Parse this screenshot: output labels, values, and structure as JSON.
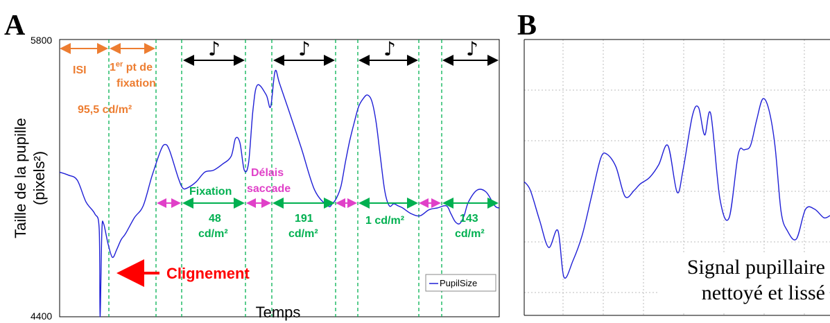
{
  "chart_data": [
    {
      "panel": "A",
      "type": "line",
      "xlabel": "Temps",
      "ylabel": "Taille de la pupille (pixels²)",
      "ylim": [
        4400,
        5800
      ],
      "yticks": [
        "5800",
        "4400"
      ],
      "legend": "PupilSize",
      "legend_position": "bottom-right",
      "series": [
        {
          "name": "PupilSize",
          "color": "#1f1fd6",
          "x": [
            0,
            2,
            4,
            6,
            8,
            9,
            9.2,
            9.6,
            10,
            11,
            12,
            13,
            14,
            15,
            17,
            19,
            21,
            23,
            24,
            25,
            27,
            28,
            29,
            31,
            33,
            35,
            37,
            39,
            40,
            41,
            42,
            43,
            44,
            45,
            47,
            48,
            49,
            50,
            52,
            55,
            58,
            61,
            62,
            63,
            64,
            65,
            66,
            67,
            68,
            69,
            70,
            71,
            72,
            73,
            74,
            75,
            76,
            77,
            78,
            80,
            82,
            84,
            86,
            88,
            89,
            90,
            91,
            92,
            93,
            95,
            97,
            99,
            100
          ],
          "values": [
            5130,
            5115,
            5090,
            4980,
            4920,
            4840,
            4400,
            4830,
            4870,
            4770,
            4700,
            4740,
            4790,
            4820,
            4900,
            4960,
            5110,
            5240,
            5270,
            5240,
            5100,
            5050,
            5050,
            5080,
            5130,
            5140,
            5170,
            5210,
            5300,
            5280,
            5140,
            5180,
            5450,
            5570,
            5520,
            5460,
            5640,
            5580,
            5450,
            5250,
            5040,
            4960,
            4970,
            5000,
            5060,
            5180,
            5290,
            5380,
            5460,
            5500,
            5520,
            5490,
            5380,
            5200,
            5030,
            4960,
            4970,
            4960,
            4950,
            4920,
            4910,
            4940,
            4950,
            4960,
            4920,
            4880,
            4870,
            4910,
            4980,
            5040,
            5030,
            4960,
            4950
          ]
        }
      ],
      "annotations": {
        "isi": "ISI",
        "fixation_first_prefix": "1",
        "fixation_first_sup": "er",
        "fixation_first_rest": " pt de",
        "fixation_first_line2": "fixation",
        "lum_first": "95,5 cd/m²",
        "fixation": "Fixation",
        "delais_line1": "Délais",
        "delais_line2": "saccade",
        "lum_48_line1": "48",
        "lum_48_line2": "cd/m²",
        "lum_191_line1": "191",
        "lum_191_line2": "cd/m²",
        "lum_1": "1 cd/m²",
        "lum_143_line1": "143",
        "lum_143_line2": "cd/m²",
        "blink": "Clignement",
        "note": "♪"
      },
      "colors": {
        "isi": "#ed7d31",
        "fixation": "#00b050",
        "delay": "#e040c8",
        "blink": "#ff0000",
        "markers": "#00b050"
      }
    },
    {
      "panel": "B",
      "type": "line",
      "grid": true,
      "annotation_line1": "Signal pupillaire",
      "annotation_line2": "nettoyé et lissé",
      "series": [
        {
          "color": "#1f1fd6",
          "x": [
            0,
            2,
            5,
            8,
            11,
            13,
            16,
            19,
            22,
            25,
            27,
            30,
            33,
            36,
            38,
            41,
            44,
            47,
            50,
            52,
            55,
            57,
            59,
            61,
            64,
            67,
            70,
            72,
            74,
            76,
            78,
            80,
            82,
            84,
            86,
            89,
            92,
            95,
            98,
            100
          ],
          "values": [
            5130,
            5090,
            4950,
            4820,
            4900,
            4680,
            4760,
            4880,
            5060,
            5240,
            5260,
            5200,
            5060,
            5090,
            5120,
            5150,
            5210,
            5300,
            5080,
            5190,
            5440,
            5480,
            5350,
            5450,
            5050,
            4960,
            5260,
            5280,
            5300,
            5420,
            5520,
            5470,
            5300,
            4990,
            4900,
            4860,
            5000,
            5000,
            4960,
            4970
          ]
        }
      ]
    }
  ],
  "panels": {
    "a": "A",
    "b": "B"
  }
}
